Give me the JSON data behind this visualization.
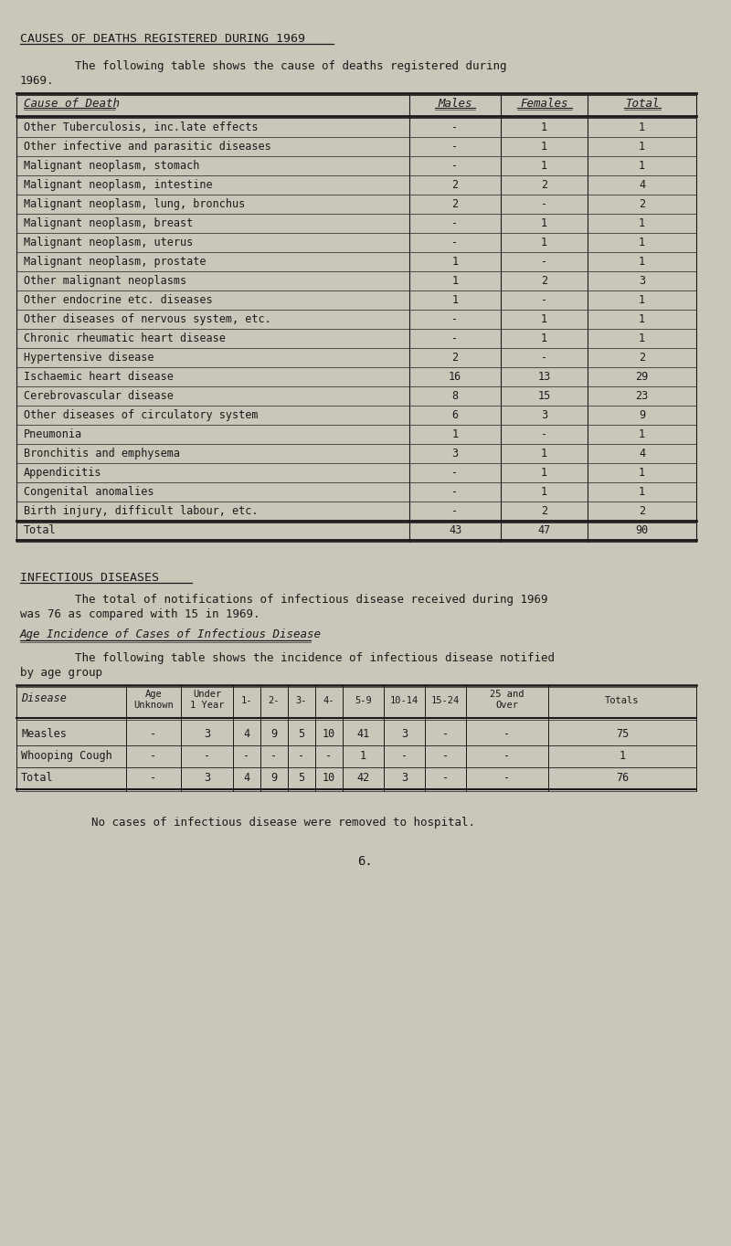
{
  "bg_color": "#cac6ba",
  "text_color": "#1a1a1a",
  "page_title": "CAUSES OF DEATHS REGISTERED DURING 1969",
  "intro_line1": "        The following table shows the cause of deaths registered during",
  "intro_line2": "1969.",
  "table1_headers": [
    "Cause of Death",
    "Males",
    "Females",
    "Total"
  ],
  "table1_rows": [
    [
      "Other Tuberculosis, inc.late effects",
      "-",
      "1",
      "1"
    ],
    [
      "Other infective and parasitic diseases",
      "-",
      "1",
      "1"
    ],
    [
      "Malignant neoplasm, stomach",
      "-",
      "1",
      "1"
    ],
    [
      "Malignant neoplasm, intestine",
      "2",
      "2",
      "4"
    ],
    [
      "Malignant neoplasm, lung, bronchus",
      "2",
      "-",
      "2"
    ],
    [
      "Malignant neoplasm, breast",
      "-",
      "1",
      "1"
    ],
    [
      "Malignant neoplasm, uterus",
      "-",
      "1",
      "1"
    ],
    [
      "Malignant neoplasm, prostate",
      "1",
      "-",
      "1"
    ],
    [
      "Other malignant neoplasms",
      "1",
      "2",
      "3"
    ],
    [
      "Other endocrine etc. diseases",
      "1",
      "-",
      "1"
    ],
    [
      "Other diseases of nervous system, etc.",
      "-",
      "1",
      "1"
    ],
    [
      "Chronic rheumatic heart disease",
      "-",
      "1",
      "1"
    ],
    [
      "Hypertensive disease",
      "2",
      "-",
      "2"
    ],
    [
      "Ischaemic heart disease",
      "16",
      "13",
      "29"
    ],
    [
      "Cerebrovascular disease",
      "8",
      "15",
      "23"
    ],
    [
      "Other diseases of circulatory system",
      "6",
      "3",
      "9"
    ],
    [
      "Pneumonia",
      "1",
      "-",
      "1"
    ],
    [
      "Bronchitis and emphysema",
      "3",
      "1",
      "4"
    ],
    [
      "Appendicitis",
      "-",
      "1",
      "1"
    ],
    [
      "Congenital anomalies",
      "-",
      "1",
      "1"
    ],
    [
      "Birth injury, difficult labour, etc.",
      "-",
      "2",
      "2"
    ]
  ],
  "table1_total": [
    "Total",
    "43",
    "47",
    "90"
  ],
  "sec2_title": "INFECTIOUS DISEASES",
  "sec2_para1": "        The total of notifications of infectious disease received during 1969",
  "sec2_para2": "was 76 as compared with 15 in 1969.",
  "sec2_subtitle": "Age Incidence of Cases of Infectious Disease",
  "sec2_para3": "        The following table shows the incidence of infectious disease notified",
  "sec2_para4": "by age group",
  "table2_headers": [
    "Disease",
    "Age\nUnknown",
    "Under\n1 Year",
    "1-",
    "2-",
    "3-",
    "4-",
    "5-9",
    "10-14",
    "15-24",
    "25 and\nOver",
    "Totals"
  ],
  "table2_rows": [
    [
      "Measles",
      "-",
      "3",
      "4",
      "9",
      "5",
      "10",
      "41",
      "3",
      "-",
      "-",
      "75"
    ],
    [
      "Whooping Cough",
      "-",
      "-",
      "-",
      "-",
      "-",
      "-",
      "1",
      "-",
      "-",
      "-",
      "1"
    ],
    [
      "Total",
      "-",
      "3",
      "4",
      "9",
      "5",
      "10",
      "42",
      "3",
      "-",
      "-",
      "76"
    ]
  ],
  "footer_note": "No cases of infectious disease were removed to hospital.",
  "page_num": "6."
}
